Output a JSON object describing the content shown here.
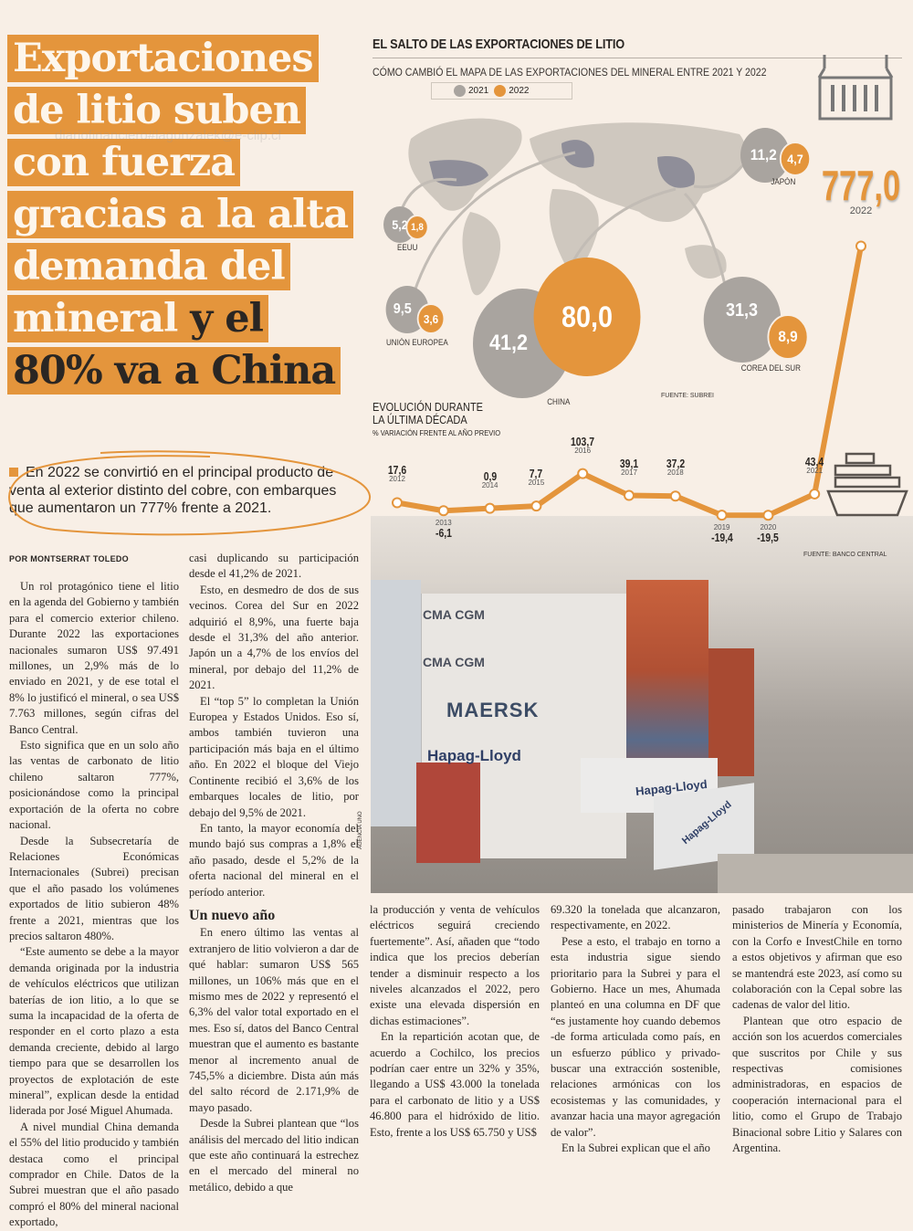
{
  "headline": {
    "lines": [
      "Exportaciones",
      "de litio suben",
      "con fuerza",
      "gracias a la alta",
      "demanda del"
    ],
    "line6_a": "mineral",
    "line6_b": "y el",
    "line7": "80% va a China"
  },
  "standfirst": "En 2022 se convirtió en el principal producto de venta al exterior distinto del cobre, con embarques que aumentaron un 777% frente a 2021.",
  "byline": "POR MONTSERRAT TOLEDO",
  "watermark": "diariofinanciero#lagunzalek@e-clip.cl",
  "colors": {
    "accent": "#e4953c",
    "gray_bubble": "#a9a49f",
    "background": "#f8efe6"
  },
  "infographic": {
    "title": "EL SALTO DE LAS EXPORTACIONES DE LITIO",
    "subtitle": "CÓMO CAMBIÓ EL MAPA DE LAS EXPORTACIONES DEL MINERAL ENTRE 2021 Y 2022",
    "legend": [
      "2021",
      "2022"
    ],
    "icons": [
      "shipping-container-icon",
      "cargo-ship-icon"
    ],
    "countries": [
      {
        "name": "EEUU",
        "y2021": "5,2",
        "y2022": "1,8"
      },
      {
        "name": "UNIÓN EUROPEA",
        "y2021": "9,5",
        "y2022": "3,6"
      },
      {
        "name": "CHINA",
        "y2021": "41,2",
        "y2022": "80,0"
      },
      {
        "name": "COREA DEL SUR",
        "y2021": "31,3",
        "y2022": "8,9"
      },
      {
        "name": "JAPÓN",
        "y2021": "11,2",
        "y2022": "4,7"
      }
    ],
    "map_source": "FUENTE: SUBREI",
    "trend_title_1": "EVOLUCIÓN DURANTE",
    "trend_title_2": "LA ÚLTIMA DÉCADA",
    "trend_subtitle": "% VARIACIÓN FRENTE AL AÑO PREVIO",
    "trend_source": "FUENTE: BANCO CENTRAL"
  },
  "chart_data": {
    "type": "line",
    "title": "EVOLUCIÓN DURANTE LA ÚLTIMA DÉCADA",
    "ylabel": "% VARIACIÓN FRENTE AL AÑO PREVIO",
    "x": [
      "2012",
      "2013",
      "2014",
      "2015",
      "2016",
      "2017",
      "2018",
      "2019",
      "2020",
      "2021",
      "2022"
    ],
    "values": [
      17.6,
      -6.1,
      0.9,
      7.7,
      103.7,
      39.1,
      37.2,
      -19.4,
      -19.5,
      43.4,
      777.0
    ],
    "labels": [
      "17,6",
      "-6,1",
      "0,9",
      "7,7",
      "103,7",
      "39,1",
      "37,2",
      "-19,4",
      "-19,5",
      "43,4",
      "777,0"
    ],
    "color": "#e4953c",
    "grid": false
  },
  "photo": {
    "credit": "AGENCIA UNO",
    "container_brands": [
      "CMA CGM",
      "CMA CGM",
      "MAERSK",
      "Hapag-Lloyd",
      "Hapag-Lloyd",
      "Hapag-Lloyd"
    ]
  },
  "body": {
    "col1": [
      "Un rol protagónico tiene el litio en la agenda del Gobierno y también para el comercio exterior chileno. Durante 2022 las exportaciones nacionales sumaron US$ 97.491 millones, un 2,9% más de lo enviado en 2021, y de ese total el 8% lo justificó el mineral, o sea US$ 7.763 millones, según cifras del Banco Central.",
      "Esto significa que en un solo año las ventas de carbonato de litio chileno saltaron 777%, posicionándose como la principal exportación de la oferta no cobre nacional.",
      "Desde la Subsecretaría de Relaciones Económicas Internacionales (Subrei) precisan que el año pasado los volúmenes exportados de litio subieron 48% frente a 2021, mientras que los precios saltaron 480%.",
      "“Este aumento se debe a la mayor demanda originada por la industria de vehículos eléctricos que utilizan baterías de ion litio, a lo que se suma la incapacidad de la oferta de responder en el corto plazo a esta demanda creciente, debido al largo tiempo para que se desarrollen los proyectos de explotación de este mineral”, explican desde la entidad liderada por José Miguel Ahumada.",
      "A nivel mundial China demanda el 55% del litio producido y también destaca como el principal comprador en Chile. Datos de la Subrei muestran que el año pasado compró el 80% del mineral nacional exportado,"
    ],
    "col2a": [
      "casi duplicando su participación desde el 41,2% de 2021.",
      "Esto, en desmedro de dos de sus vecinos. Corea del Sur en 2022 adquirió el 8,9%, una fuerte baja desde el 31,3% del año anterior. Japón un a 4,7% de los envíos del mineral, por debajo del 11,2% de 2021.",
      "El “top 5” lo completan la Unión Europea y Estados Unidos. Eso sí, ambos también tuvieron una participación más baja en el último año. En 2022 el bloque del Viejo Continente recibió el 3,6% de los embarques locales de litio, por debajo del 9,5% de 2021.",
      "En tanto, la mayor economía del mundo bajó sus compras a 1,8% el año pasado, desde el 5,2% de la oferta nacional del mineral en el período anterior."
    ],
    "subhead": "Un nuevo año",
    "col2b": [
      "En enero último las ventas al extranjero de litio volvieron a dar de qué hablar: sumaron US$ 565 millones, un 106% más que en el mismo mes de 2022 y representó el 6,3% del valor total exportado en el mes. Eso sí, datos del Banco Central muestran que el aumento es bastante menor al incremento anual de 745,5% a diciembre. Dista aún más del salto récord de 2.171,9% de mayo pasado.",
      "Desde la Subrei plantean que “los análisis del mercado del litio indican que este año continuará la estrechez en el mercado del mineral no metálico, debido a que"
    ],
    "col3": [
      "la producción y venta de vehículos eléctricos seguirá creciendo fuertemente”. Así, añaden que “todo indica que los precios deberían tender a disminuir respecto a los niveles alcanzados el 2022, pero existe una elevada dispersión en dichas estimaciones”.",
      "En la repartición acotan que, de acuerdo a Cochilco, los precios podrían caer entre un 32% y 35%, llegando a US$ 43.000 la tonelada para el carbonato de litio y a US$ 46.800 para el hidróxido de litio. Esto, frente a los US$ 65.750 y US$"
    ],
    "col4": [
      "69.320 la tonelada que alcanzaron, respectivamente, en 2022.",
      "Pese a esto, el trabajo en torno a esta industria sigue siendo prioritario para la Subrei y para el Gobierno. Hace un mes, Ahumada planteó en una columna en DF que “es justamente hoy cuando debemos -de forma articulada como país, en un esfuerzo público y privado- buscar una extracción sostenible, relaciones armónicas con los ecosistemas y las comunidades, y avanzar hacia una mayor agregación de valor”.",
      "En la Subrei explican que el año"
    ],
    "col5": [
      "pasado trabajaron con los ministerios de Minería y Economía, con la Corfo e InvestChile en torno a estos objetivos y afirman que eso se mantendrá este 2023, así como su colaboración con la Cepal sobre las cadenas de valor del litio.",
      "Plantean que otro espacio de acción son los acuerdos comerciales que suscritos por Chile y sus respectivas comisiones administradoras, en espacios de cooperación internacional para el litio, como el Grupo de Trabajo Binacional sobre Litio y Salares con Argentina."
    ]
  }
}
